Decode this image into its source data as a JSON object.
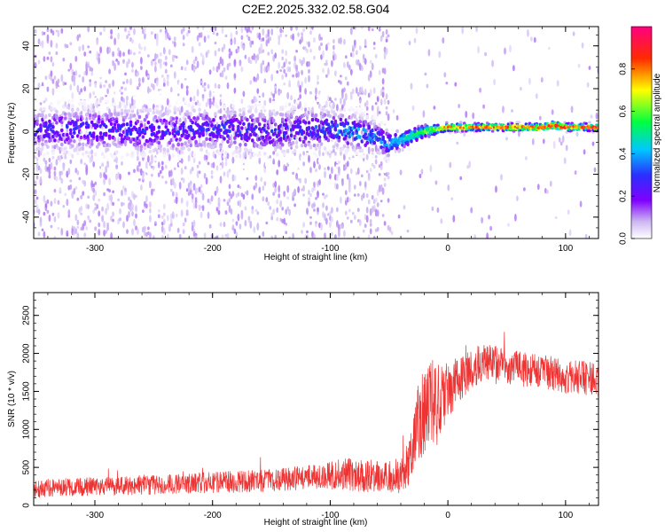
{
  "title": "C2E2.2025.332.02.58.G04",
  "colors": {
    "snr_line": "#ee3333",
    "axis": "#000000",
    "background": "#ffffff"
  },
  "chart_data": [
    {
      "type": "heatmap",
      "xlabel": "Height of straight line (km)",
      "ylabel": "Frequency (Hz)",
      "xlim": [
        -352,
        128
      ],
      "ylim": [
        -50,
        49
      ],
      "xticks": [
        -300,
        -200,
        -100,
        0,
        100
      ],
      "xtick_labels": [
        "-300",
        "-200",
        "-100",
        "0",
        "100"
      ],
      "yticks": [
        -40,
        -20,
        0,
        20,
        40
      ],
      "ytick_labels": [
        "-40",
        "-20",
        "0",
        "20",
        "40"
      ],
      "colorbar": {
        "label": "Normalized spectral amplitude",
        "range": [
          0,
          1
        ],
        "ticks": [
          0.0,
          0.2,
          0.4,
          0.6,
          0.8
        ],
        "tick_labels": [
          "0.0",
          "0.2",
          "0.4",
          "0.6",
          "0.8"
        ],
        "colormap": "rainbow (white → purple → blue → cyan → green → yellow → red → magenta)"
      },
      "ridge": {
        "description": "frequency ridge: broad noisy band near 0 Hz below -60 km, dips to about -6 Hz near -50 km, narrows to a sharp line at about +2 Hz above -10 km",
        "x": [
          -352,
          -300,
          -250,
          -200,
          -150,
          -100,
          -80,
          -60,
          -50,
          -40,
          -30,
          -20,
          -10,
          0,
          20,
          50,
          80,
          90,
          100,
          128
        ],
        "freq": [
          1,
          1,
          0,
          1,
          0,
          1,
          0,
          -3,
          -6,
          -4,
          -2,
          0,
          1,
          2,
          2,
          2,
          2,
          3,
          2,
          2
        ],
        "peak_amplitude": [
          0.25,
          0.28,
          0.27,
          0.28,
          0.27,
          0.32,
          0.42,
          0.38,
          0.4,
          0.45,
          0.55,
          0.62,
          0.7,
          0.82,
          0.86,
          0.88,
          0.88,
          0.9,
          0.88,
          0.86
        ],
        "spread_hz": [
          5,
          5,
          5,
          5,
          5,
          4.5,
          4,
          3.5,
          3,
          2.5,
          2,
          1.6,
          1.3,
          1.1,
          1,
          1,
          1,
          1.2,
          1,
          1
        ]
      }
    },
    {
      "type": "line",
      "xlabel": "Height of straight line (km)",
      "ylabel": "SNR (10 * v/v)",
      "xlim": [
        -352,
        128
      ],
      "ylim": [
        0,
        2800
      ],
      "xticks": [
        -300,
        -200,
        -100,
        0,
        100
      ],
      "xtick_labels": [
        "-300",
        "-200",
        "-100",
        "0",
        "100"
      ],
      "yticks": [
        0,
        500,
        1000,
        1500,
        2000,
        2500
      ],
      "ytick_labels": [
        "0",
        "500",
        "1000",
        "1500",
        "2000",
        "2500"
      ],
      "series": [
        {
          "name": "SNR",
          "color": "#ee3333",
          "x": [
            -352,
            -300,
            -250,
            -200,
            -150,
            -120,
            -100,
            -90,
            -80,
            -70,
            -60,
            -50,
            -40,
            -32,
            -25,
            -20,
            -15,
            -10,
            -5,
            0,
            10,
            20,
            30,
            40,
            60,
            80,
            100,
            128
          ],
          "y": [
            220,
            250,
            270,
            300,
            330,
            370,
            390,
            400,
            400,
            390,
            390,
            380,
            400,
            600,
            1100,
            1250,
            1300,
            1300,
            1400,
            1500,
            1650,
            1800,
            1900,
            1850,
            1800,
            1750,
            1700,
            1650
          ],
          "noise_amplitude": [
            120,
            120,
            130,
            140,
            150,
            160,
            180,
            220,
            250,
            220,
            200,
            200,
            250,
            350,
            550,
            600,
            650,
            550,
            450,
            380,
            300,
            260,
            260,
            250,
            230,
            230,
            230,
            230
          ]
        }
      ]
    }
  ]
}
